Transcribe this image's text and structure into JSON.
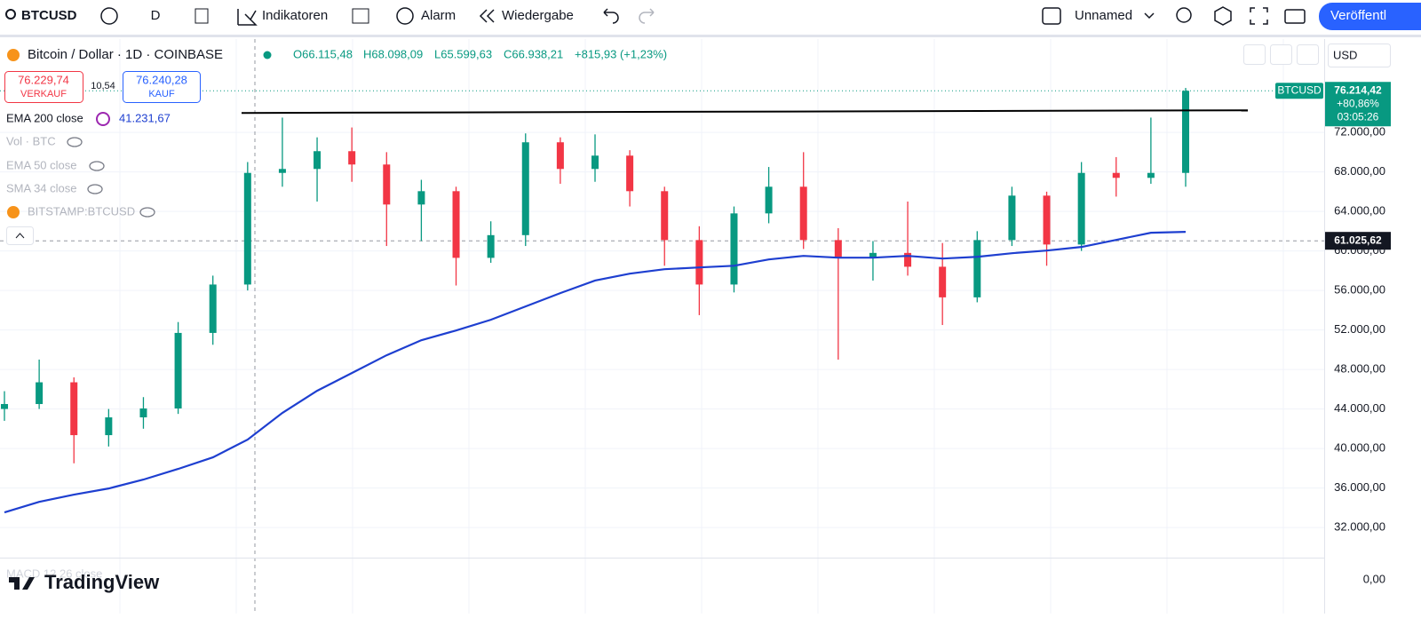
{
  "toolbar": {
    "symbol": "BTCUSD",
    "interval": "D",
    "indicators": "Indikatoren",
    "alarm": "Alarm",
    "replay": "Wiedergabe",
    "layout_name": "Unnamed",
    "publish": "Veröffentl"
  },
  "legend": {
    "title": "Bitcoin / Dollar · 1D · COINBASE",
    "open": "O66.115,48",
    "high": "H68.098,09",
    "low": "L65.599,63",
    "close": "C66.938,21",
    "change": "+815,93 (+1,23%)",
    "sell": {
      "price": "76.229,74",
      "label": "VERKAUF"
    },
    "spread": "10,54",
    "buy": {
      "price": "76.240,28",
      "label": "KAUF"
    },
    "indicators": [
      {
        "name": "EMA 200 close",
        "value": "41.231,67"
      },
      {
        "name": "Vol · BTC"
      },
      {
        "name": "EMA 50 close"
      },
      {
        "name": "SMA 34 close"
      },
      {
        "name": "BITSTAMP:BTCUSD"
      }
    ],
    "macd": "MACD 12 26 close",
    "watermark": "TradingView",
    "currency": "USD"
  },
  "chart_data": {
    "type": "candlestick",
    "up_color": "#089981",
    "down_color": "#f23645",
    "open": [
      44000,
      44500,
      46700,
      41350,
      43150,
      44050,
      51700,
      56600,
      67900,
      68300,
      70100,
      68750,
      64700,
      66050,
      59300,
      61600,
      71000,
      68300,
      69650,
      66050,
      61100,
      56600,
      63800,
      66500,
      61100,
      59300,
      59800,
      58400,
      55300,
      61100,
      65600,
      60650,
      67900,
      67400,
      67900
    ],
    "high": [
      45800,
      49000,
      47200,
      44000,
      45200,
      52800,
      57500,
      69000,
      73500,
      71500,
      72500,
      70000,
      67200,
      66500,
      63000,
      71900,
      71500,
      71800,
      70200,
      66500,
      62500,
      64500,
      68500,
      70000,
      62300,
      61000,
      65000,
      60800,
      62000,
      66500,
      66000,
      69000,
      69500,
      73500,
      76500
    ],
    "low": [
      42800,
      44000,
      38500,
      40200,
      42000,
      43500,
      50500,
      56000,
      66500,
      65000,
      67000,
      60500,
      61000,
      56500,
      58800,
      60500,
      66800,
      67000,
      64500,
      58500,
      53500,
      55800,
      62800,
      60200,
      49000,
      57000,
      57500,
      52500,
      54800,
      60500,
      58500,
      60000,
      65500,
      66800,
      66500
    ],
    "close": [
      44500,
      46700,
      41350,
      43150,
      44050,
      51700,
      56600,
      67900,
      68300,
      70100,
      68750,
      64700,
      66050,
      59300,
      61600,
      71000,
      68300,
      69650,
      66050,
      61100,
      56600,
      63800,
      66500,
      61100,
      59300,
      59800,
      58400,
      55300,
      61100,
      65600,
      60650,
      67900,
      67400,
      67900,
      76214.42
    ],
    "series": [
      {
        "name": "EMA 200 close",
        "color": "#1e3fd0",
        "values": [
          33530,
          34600,
          35330,
          35950,
          36850,
          37930,
          39100,
          40900,
          43600,
          45840,
          47640,
          49440,
          50960,
          51950,
          53030,
          54380,
          55730,
          57000,
          57700,
          58150,
          58330,
          58500,
          59140,
          59500,
          59320,
          59320,
          59500,
          59230,
          59400,
          59770,
          60040,
          60400,
          61120,
          61840,
          61930
        ]
      }
    ],
    "trendline": 74150,
    "last_price": {
      "symbol": "BTCUSD",
      "value": 76214.42,
      "label": "76.214,42",
      "change": "+80,86%",
      "countdown": "03:05:26"
    },
    "crosshair": {
      "value": 61025.62,
      "label": "61.025,62"
    },
    "ylim": [
      28950,
      81450
    ],
    "yticks": [
      {
        "value": 32000,
        "label": "32.000,00"
      },
      {
        "value": 36000,
        "label": "36.000,00"
      },
      {
        "value": 40000,
        "label": "40.000,00"
      },
      {
        "value": 44000,
        "label": "44.000,00"
      },
      {
        "value": 48000,
        "label": "48.000,00"
      },
      {
        "value": 52000,
        "label": "52.000,00"
      },
      {
        "value": 56000,
        "label": "56.000,00"
      },
      {
        "value": 60000,
        "label": "60.000,00"
      },
      {
        "value": 64000,
        "label": "64.000,00"
      },
      {
        "value": 68000,
        "label": "68.000,00"
      },
      {
        "value": 72000,
        "label": "72.000,00"
      }
    ],
    "y2ticks": [
      {
        "value": 0,
        "label": "0,00"
      }
    ],
    "grid": true
  }
}
